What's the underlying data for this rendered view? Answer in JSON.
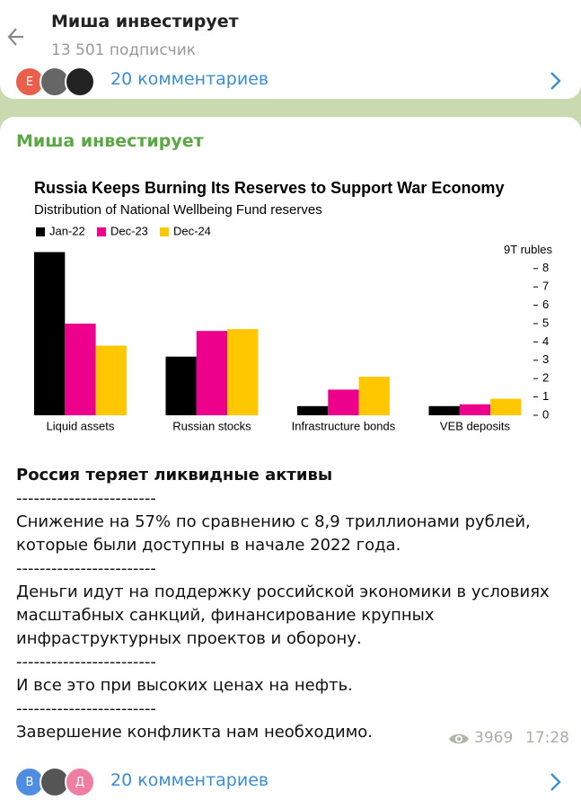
{
  "header": {
    "title": "Миша инвестирует",
    "subtitle": "13 501 подписчик"
  },
  "comments_top": {
    "avatar": "Е",
    "label": "20 комментариев"
  },
  "post": {
    "author": "Миша инвестирует",
    "heading": "Россия теряет ликвидные активы",
    "paragraphs": [
      "------------------------",
      "Снижение на 57% по сравнению с 8,9 триллионами рублей, которые были доступны в начале 2022 года.",
      "------------------------",
      "Деньги идут на поддержку российской экономики в условиях масштабных санкций, финансирование крупных инфраструктурных проектов и оборону.",
      "------------------------",
      "И все это при высоких ценах на нефть.",
      "------------------------",
      "Завершение конфликта нам необходимо."
    ],
    "views": "3969",
    "time": "17:28"
  },
  "comments_bottom": {
    "avatars": [
      "В",
      "Д"
    ],
    "label": "20 комментариев"
  },
  "chart_data": {
    "type": "bar",
    "title": "Russia Keeps Burning Its Reserves to Support War Economy",
    "subtitle": "Distribution of National Wellbeing Fund reserves",
    "categories": [
      "Liquid assets",
      "Russian stocks",
      "Infrastructure bonds",
      "VEB deposits"
    ],
    "series": [
      {
        "name": "Jan-22",
        "color": "#000000",
        "values": [
          8.9,
          3.2,
          0.5,
          0.5
        ]
      },
      {
        "name": "Dec-23",
        "color": "#ec008c",
        "values": [
          5.0,
          4.6,
          1.4,
          0.6
        ]
      },
      {
        "name": "Dec-24",
        "color": "#ffc700",
        "values": [
          3.8,
          4.7,
          2.1,
          0.9
        ]
      }
    ],
    "ylim": [
      0,
      9
    ],
    "yticks": [
      0,
      1,
      2,
      3,
      4,
      5,
      6,
      7,
      8,
      {
        "value": 9,
        "label": "9T rubles"
      }
    ],
    "grid": false
  }
}
